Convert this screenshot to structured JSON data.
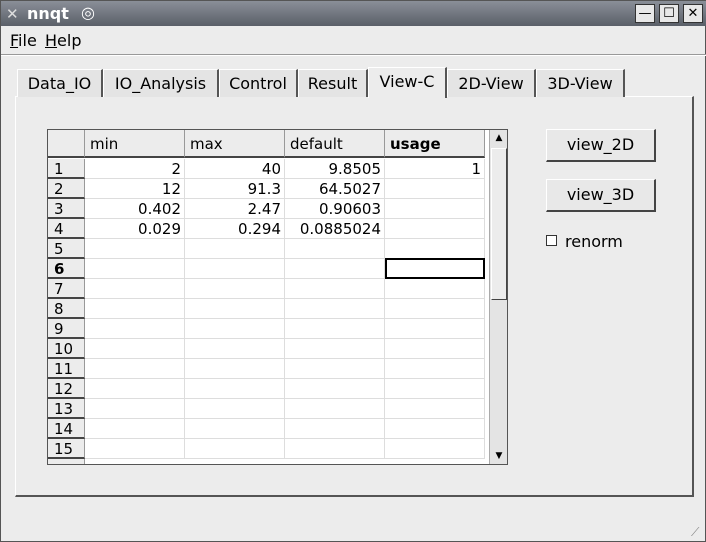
{
  "window": {
    "title": "nnqt"
  },
  "menu": [
    "File",
    "Help"
  ],
  "tabs": [
    "Data_IO",
    "IO_Analysis",
    "Control",
    "Result",
    "View-C",
    "2D-View",
    "3D-View"
  ],
  "table": {
    "columns": [
      "min",
      "max",
      "default",
      "usage"
    ],
    "row_labels": [
      "1",
      "2",
      "3",
      "4",
      "5",
      "6",
      "7",
      "8",
      "9",
      "10",
      "11",
      "12",
      "13",
      "14",
      "15"
    ],
    "rows": [
      [
        "2",
        "40",
        "9.8505",
        "1"
      ],
      [
        "12",
        "91.3",
        "64.5027"
      ],
      [
        "0.402",
        "2.47",
        "0.90603"
      ],
      [
        "0.029",
        "0.294",
        "0.0885024"
      ]
    ]
  },
  "buttons": [
    "view_2D",
    "view_3D"
  ],
  "checkbox": {
    "label": "renorm"
  }
}
